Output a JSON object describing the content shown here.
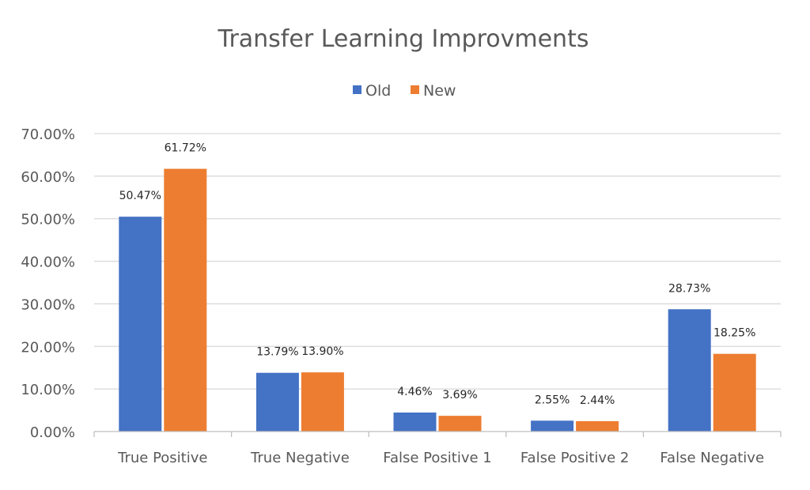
{
  "chart_data": {
    "type": "bar",
    "title": "Transfer Learning Improvments",
    "xlabel": "",
    "ylabel": "",
    "categories": [
      "True Positive",
      "True Negative",
      "False Positive 1",
      "False Positive 2",
      "False Negative"
    ],
    "series": [
      {
        "name": "Old",
        "color": "#4472c4",
        "values": [
          50.47,
          13.79,
          4.46,
          2.55,
          28.73
        ],
        "labels": [
          "50.47%",
          "13.79%",
          "4.46%",
          "2.55%",
          "28.73%"
        ]
      },
      {
        "name": "New",
        "color": "#ed7d31",
        "values": [
          61.72,
          13.9,
          3.69,
          2.44,
          18.25
        ],
        "labels": [
          "61.72%",
          "13.90%",
          "3.69%",
          "2.44%",
          "18.25%"
        ]
      }
    ],
    "ylim": [
      0,
      70
    ],
    "yticks": [
      "0.00%",
      "10.00%",
      "20.00%",
      "30.00%",
      "40.00%",
      "50.00%",
      "60.00%",
      "70.00%"
    ],
    "grid": true,
    "legend_position": "top-center"
  }
}
